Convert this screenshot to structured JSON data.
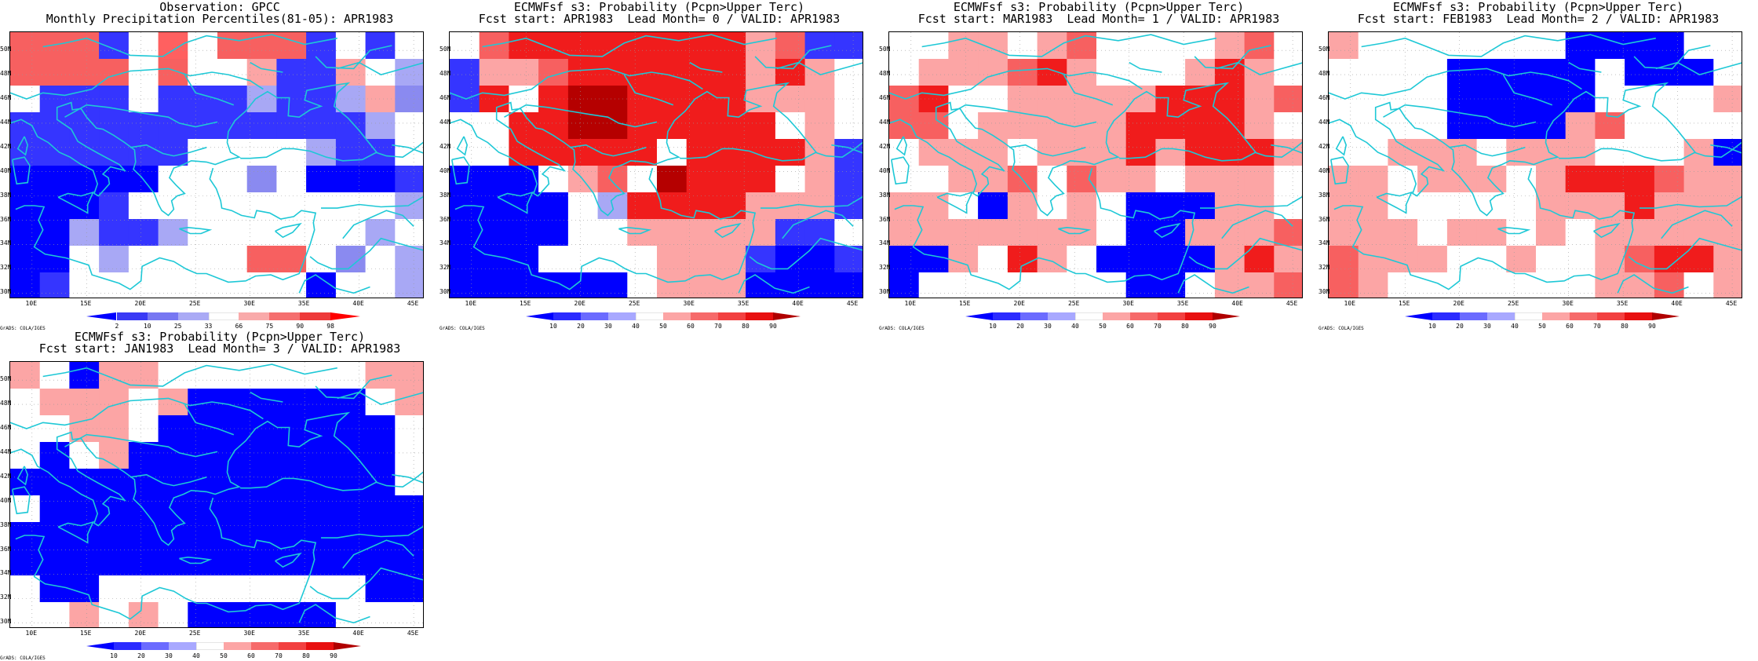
{
  "panels": [
    {
      "title1": "Observation: GPCC",
      "title2": "Monthly Precipitation Percentiles(81-05): APR1983",
      "colorbar": {
        "labels": [
          "2",
          "10",
          "25",
          "33",
          "66",
          "75",
          "90",
          "98"
        ],
        "colors": [
          "#0000ff",
          "#3a3af5",
          "#7777f2",
          "#aaaaf5",
          "#ffffff",
          "#f9aaaa",
          "#f56f6f",
          "#ee3a3a",
          "#ff0000"
        ]
      },
      "grid": [
        "rrrb0o0rrrb0b0",
        "rrrr0r00lbbl0.",
        "0bbb0bbb.bb.lL",
        "bbbbbbbbbbbb.0",
        "bbbbbb0000.bb0",
        "BBBBB000L0BBBb",
        "BBBb000000000.",
        "BB.bb.000000.0",
        "BB0.0000rr0L0.",
        "Bb00000000B00."
      ]
    },
    {
      "title1": "ECMWFsf s3: Probability (Pcpn>Upper Terc)",
      "title2": "Fcst start: APR1983  Lead Month= 0 / VALID: APR1983",
      "colorbar": {
        "labels": [
          "10",
          "20",
          "30",
          "40",
          "50",
          "60",
          "70",
          "80",
          "90"
        ],
        "colors": [
          "#0000ff",
          "#2b2bff",
          "#6b6bff",
          "#a8a8ff",
          "#ffffff",
          "#fca5a5",
          "#f66a6a",
          "#f24040",
          "#e81010",
          "#b00000"
        ]
      },
      "grid": [
        "0rRRRRRRRRlrbb",
        "bllrRRRRRRlRl0",
        "bR0RDDRRRRlll0",
        "00RRDDRRRRR0l0",
        "00RRRRR0RRRRlb",
        "BBB0lr0DRRR0lb",
        "BBBB0.RRRRlllb",
        "BBBB00lllllbb0",
        "BBB0000lllbBBb",
        "BBBBBB0lllBBBB"
      ]
    },
    {
      "title1": "ECMWFsf s3: Probability (Pcpn>Upper Terc)",
      "title2": "Fcst start: MAR1983  Lead Month= 1 / VALID: APR1983",
      "colorbar": {
        "labels": [
          "10",
          "20",
          "30",
          "40",
          "50",
          "60",
          "70",
          "80",
          "90"
        ],
        "colors": [
          "#0000ff",
          "#2b2bff",
          "#6b6bff",
          "#a8a8ff",
          "#ffffff",
          "#fca5a5",
          "#f66a6a",
          "#f24040",
          "#e81010",
          "#b00000"
        ]
      },
      "grid": [
        "00ll0lr0000lr0",
        "0lllrRl000lRl0",
        "rR00lllllRRRlr",
        "rr0lllllRRRRl0",
        "0lll0lllRlRRRl",
        "00llr0rll0lll0",
        "ll0Bl0l0BBBll0",
        "lllllll0BBlllr",
        "BBl0Rl0BBBBlRl",
        "B0000000BB0llr"
      ]
    },
    {
      "title1": "ECMWFsf s3: Probability (Pcpn>Upper Terc)",
      "title2": "Fcst start: FEB1983  Lead Month= 2 / VALID: APR1983",
      "colorbar": {
        "labels": [
          "10",
          "20",
          "30",
          "40",
          "50",
          "60",
          "70",
          "80",
          "90"
        ],
        "colors": [
          "#0000ff",
          "#2b2bff",
          "#6b6bff",
          "#a8a8ff",
          "#ffffff",
          "#fca5a5",
          "#f66a6a",
          "#f24040",
          "#e81010",
          "#b00000"
        ]
      },
      "grid": [
        "l0000000BBBB00",
        "0000BBBBB0BBB0",
        "0000BBBBB0000l",
        "0000BBBBlr0000",
        "00lll0lll000lB",
        "ll0lll0lRRRrll",
        "ll00000lllRlll",
        "lll0ll0l0lllll",
        "rlll00l00lrRRl",
        "rl0000000llr0l"
      ]
    },
    {
      "title1": "ECMWFsf s3: Probability (Pcpn>Upper Terc)",
      "title2": "Fcst start: JAN1983  Lead Month= 3 / VALID: APR1983",
      "colorbar": {
        "labels": [
          "10",
          "20",
          "30",
          "40",
          "50",
          "60",
          "70",
          "80",
          "90"
        ],
        "colors": [
          "#0000ff",
          "#2b2bff",
          "#6b6bff",
          "#a8a8ff",
          "#ffffff",
          "#fca5a5",
          "#f66a6a",
          "#f24040",
          "#e81010",
          "#b00000"
        ]
      },
      "grid": [
        "l0Bll0000000ll",
        "0lll0lBBBBBB0l",
        "00ll0BBBBBBBB0",
        "0B0lBBBBBBBBB0",
        "BBBBBBBBBBBBB0",
        "0BBBBBBBBBBBBB",
        "BBBBBBBBBBBBBB",
        "BBBBBBBBBBBBBB",
        "0BB000000000BB",
        "00l0l0BBBBB000"
      ]
    }
  ],
  "lat_labels": [
    "50N",
    "48N",
    "46N",
    "44N",
    "42N",
    "40N",
    "38N",
    "36N",
    "34N",
    "32N",
    "30N"
  ],
  "lon_labels": [
    "10E",
    "15E",
    "20E",
    "25E",
    "30E",
    "35E",
    "40E",
    "45E"
  ],
  "grads_credit": "GrADS: COLA/IGES",
  "cell_colors": {
    "B": "#0000ff",
    "b": "#3535ff",
    ".": "#a8a8f5",
    "L": "#8a8af0",
    "0": "#ffffff",
    "l": "#fca5a5",
    "r": "#f76060",
    "R": "#f01c1c",
    "D": "#b50000",
    "o": "#ff6060"
  },
  "coast_color": "#1ec8d6"
}
